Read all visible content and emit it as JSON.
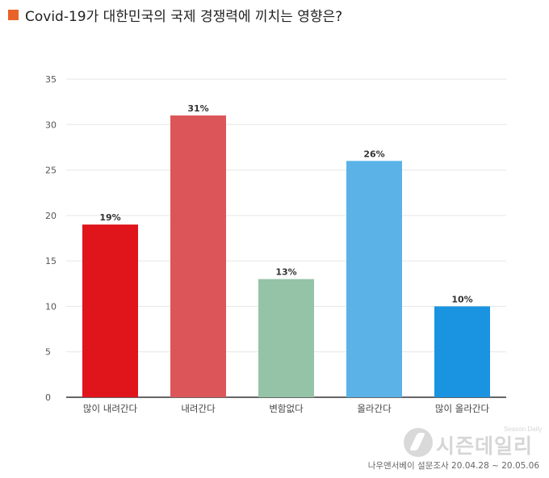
{
  "header": {
    "title": "Covid-19가 대한민국의 국제 경쟁력에 끼치는 영향은?",
    "marker_color": "#e8622a"
  },
  "chart_data": {
    "type": "bar",
    "title": "Covid-19가 대한민국의 국제 경쟁력에 끼치는 영향은?",
    "categories": [
      "많이 내려간다",
      "내려간다",
      "변함없다",
      "올라간다",
      "많이 올라간다"
    ],
    "values": [
      19,
      31,
      13,
      26,
      10
    ],
    "value_labels": [
      "19%",
      "31%",
      "13%",
      "26%",
      "10%"
    ],
    "colors": [
      "#e0141b",
      "#dc5559",
      "#94c3a7",
      "#5ab2e6",
      "#1a94e0"
    ],
    "ylim": [
      0,
      35
    ],
    "yticks": [
      0,
      5,
      10,
      15,
      20,
      25,
      30,
      35
    ],
    "grid": true,
    "legend": "none"
  },
  "watermark": {
    "small": "Season Daily",
    "big": "시즌데일리"
  },
  "footer": {
    "source": "나우앤서베이 설문조사 20.04.28 ~ 20.05.06"
  }
}
